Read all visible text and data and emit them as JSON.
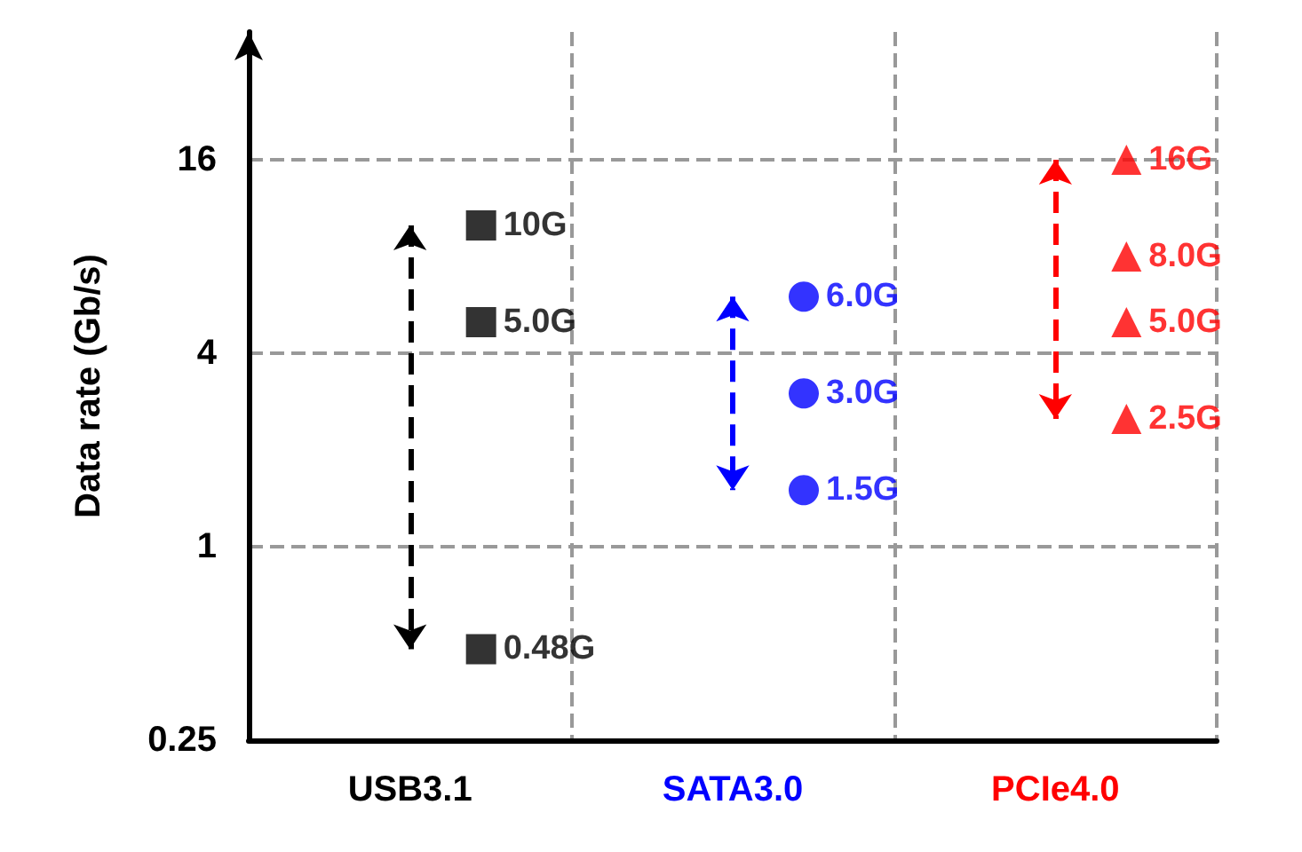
{
  "chart_data": {
    "type": "scatter",
    "ylabel": "Data rate (Gb/s)",
    "categories": [
      "USB3.1",
      "SATA3.0",
      "PCIe4.0"
    ],
    "log": "y",
    "ylim": [
      0.25,
      40
    ],
    "yticks": [
      0.25,
      1,
      4,
      16
    ],
    "grid": true,
    "line_style": "dashed",
    "series": [
      {
        "color": "#000000",
        "marker": "square",
        "x": [
          "USB3.1",
          "USB3.1",
          "USB3.1"
        ],
        "values": [
          10,
          5.0,
          0.48
        ],
        "value_labels": [
          "10G",
          "5.0G",
          "0.48G"
        ]
      },
      {
        "color": "#0000ff",
        "marker": "circle",
        "x": [
          "SATA3.0",
          "SATA3.0",
          "SATA3.0"
        ],
        "values": [
          6.0,
          3.0,
          1.5
        ],
        "value_labels": [
          "6.0G",
          "3.0G",
          "1.5G"
        ]
      },
      {
        "color": "#ff0000",
        "marker": "triangle",
        "x": [
          "PCIe4.0",
          "PCIe4.0",
          "PCIe4.0",
          "PCIe4.0"
        ],
        "values": [
          16,
          8.0,
          5.0,
          2.5
        ],
        "value_labels": [
          "16G",
          "8.0G",
          "5.0G",
          "2.5G"
        ]
      }
    ]
  }
}
